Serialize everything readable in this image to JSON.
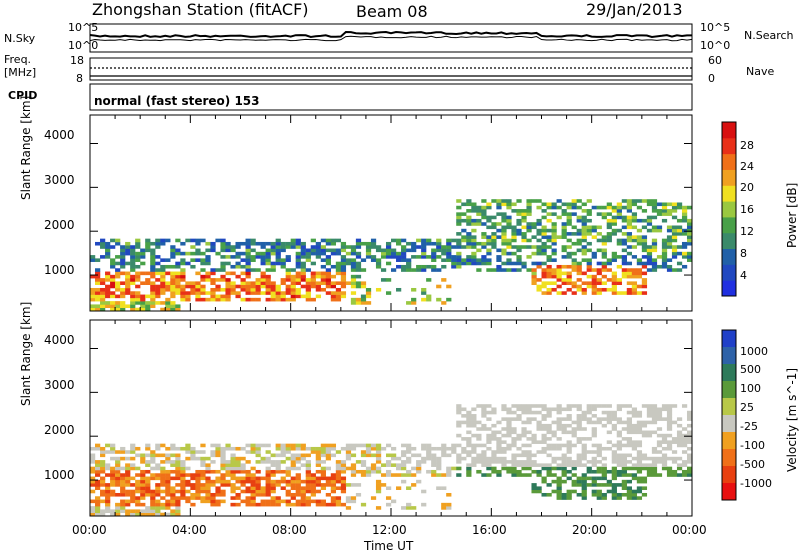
{
  "header": {
    "station": "Zhongshan Station (fitACF)",
    "beam": "Beam 08",
    "date": "29/Jan/2013"
  },
  "top_panels": {
    "nsky_label": "N.Sky",
    "nsky_ticks": [
      "10^5",
      "10^0"
    ],
    "nsearch_label": "N.Search",
    "nsearch_ticks": [
      "10^5",
      "10^0"
    ],
    "freq_label_1": "Freq.",
    "freq_label_2": "[MHz]",
    "freq_ticks": [
      "18",
      "8"
    ],
    "nave_label": "Nave",
    "nave_ticks": [
      "60",
      "0"
    ],
    "cpid_label": "CPID",
    "cpid_text": "normal (fast stereo) 153"
  },
  "chart_data": [
    {
      "type": "heatmap",
      "title": "",
      "xlabel": "Time UT",
      "ylabel": "Slant Range [km]",
      "xlim": [
        "00:00",
        "24:00"
      ],
      "ylim": [
        180,
        4650
      ],
      "x_ticks": [
        "00:00",
        "04:00",
        "08:00",
        "12:00",
        "16:00",
        "20:00",
        "00:00"
      ],
      "y_ticks": [
        "1000",
        "2000",
        "3000",
        "4000"
      ],
      "colorbar": {
        "label": "Power [dB]",
        "range": [
          0,
          30
        ],
        "ticks": [
          "4",
          "8",
          "12",
          "16",
          "20",
          "24",
          "28"
        ],
        "colors": [
          "#2030e0",
          "#2048c0",
          "#2060a8",
          "#3a8a6a",
          "#48a048",
          "#9ac840",
          "#f0e020",
          "#f0a020",
          "#f07018",
          "#e83018",
          "#d81010"
        ]
      }
    },
    {
      "type": "heatmap",
      "title": "",
      "xlabel": "Time UT",
      "ylabel": "Slant Range [km]",
      "xlim": [
        "00:00",
        "24:00"
      ],
      "ylim": [
        180,
        4650
      ],
      "x_ticks": [
        "00:00",
        "04:00",
        "08:00",
        "12:00",
        "16:00",
        "20:00",
        "00:00"
      ],
      "y_ticks": [
        "1000",
        "2000",
        "3000",
        "4000"
      ],
      "colorbar": {
        "label": "Velocity [m s^-1]",
        "ticks": [
          "1000",
          "500",
          "100",
          "25",
          "-25",
          "-100",
          "-500",
          "-1000"
        ],
        "colors": [
          "#2040c8",
          "#2e62a8",
          "#2e7a5a",
          "#5a9a3a",
          "#b8c848",
          "#c8c8c0",
          "#f0a020",
          "#f07018",
          "#e84010",
          "#e81010"
        ]
      }
    }
  ],
  "x_axis_title": "Time UT"
}
